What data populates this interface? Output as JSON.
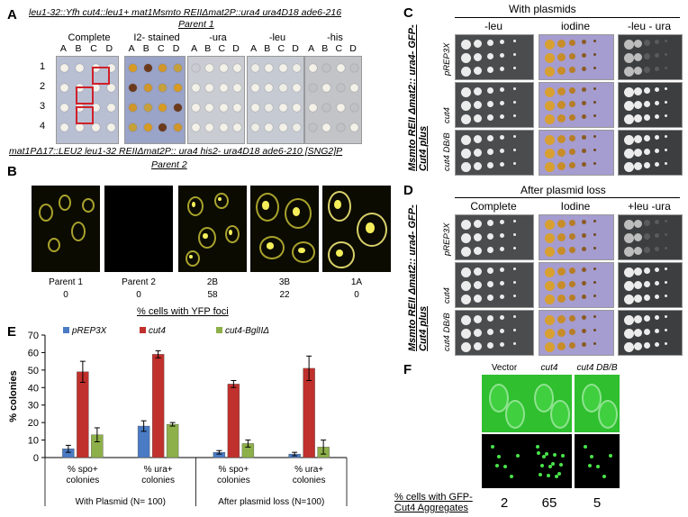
{
  "panelA": {
    "letter": "A",
    "parent1_genotype": "leu1-32::Yfh cut4::leu1+ mat1Msmto REIIΔmat2P::ura4 ura4D18 ade6-216",
    "parent1_label": "Parent 1",
    "conditions": [
      "Complete",
      "I2- stained",
      "-ura",
      "-leu",
      "-his"
    ],
    "columns": [
      "A",
      "B",
      "C",
      "D"
    ],
    "rows": [
      "1",
      "2",
      "3",
      "4"
    ],
    "parent2_genotype": "mat1PΔ17::LEU2 leu1-32 REIIΔmat2P:: ura4 his2- ura4D18 ade6-210 [SNG2]P",
    "parent2_label": "Parent 2"
  },
  "panelB": {
    "letter": "B",
    "images": [
      {
        "name": "Parent 1",
        "value": "0"
      },
      {
        "name": "Parent  2",
        "value": "0"
      },
      {
        "name": "2B",
        "value": "58"
      },
      {
        "name": "3B",
        "value": "22"
      },
      {
        "name": "1A",
        "value": "0"
      }
    ],
    "caption": "% cells with YFP foci"
  },
  "panelC": {
    "letter": "C",
    "header": "With plasmids",
    "conditions": [
      "-leu",
      "iodine",
      "-leu - ura"
    ],
    "strain_label": "Msmto REII Δmat2:: ura4- GFP-Cut4 plus",
    "rows": [
      "pREP3X",
      "cut4",
      "cut4 DB/B"
    ]
  },
  "panelD": {
    "letter": "D",
    "header": "After plasmid loss",
    "conditions": [
      "Complete",
      "Iodine",
      "+leu -ura"
    ],
    "strain_label": "Msmto REII Δmat2:: ura4- GFP-Cut4 plus",
    "rows": [
      "pREP3X",
      "cut4",
      "cut4 DB/B"
    ]
  },
  "chart_data": {
    "type": "bar",
    "letter": "E",
    "legend": [
      "pREP3X",
      "cut4",
      "cut4-BglIIΔ"
    ],
    "colors": [
      "#4a7bc4",
      "#c0302c",
      "#8db04a"
    ],
    "ylabel": "% colonies",
    "ylim": [
      0,
      70
    ],
    "yticks": [
      0,
      10,
      20,
      30,
      40,
      50,
      60,
      70
    ],
    "categories": [
      "% spo+ colonies",
      "% ura+ colonies",
      "% spo+ colonies",
      "% ura+ colonies"
    ],
    "category_lines": [
      [
        "% spo+",
        "colonies"
      ],
      [
        "% ura+",
        "colonies"
      ],
      [
        "% spo+",
        "colonies"
      ],
      [
        "% ura+",
        "colonies"
      ]
    ],
    "groups": [
      "With Plasmid (N= 100)",
      "After plasmid loss (N=100)"
    ],
    "series": [
      {
        "name": "pREP3X",
        "values": [
          5,
          18,
          3,
          2
        ],
        "errors": [
          2,
          3,
          1,
          1
        ]
      },
      {
        "name": "cut4",
        "values": [
          49,
          59,
          42,
          51
        ],
        "errors": [
          6,
          2,
          2,
          7
        ]
      },
      {
        "name": "cut4-BglIIΔ",
        "values": [
          13,
          19,
          8,
          6
        ],
        "errors": [
          4,
          1,
          2,
          4
        ]
      }
    ]
  },
  "panelF": {
    "letter": "F",
    "columns": [
      "Vector",
      "cut4",
      "cut4 DB/B"
    ],
    "caption_line1": "% cells with GFP-",
    "caption_line2": "Cut4 Aggregates",
    "values": [
      "2",
      "65",
      "5"
    ]
  }
}
